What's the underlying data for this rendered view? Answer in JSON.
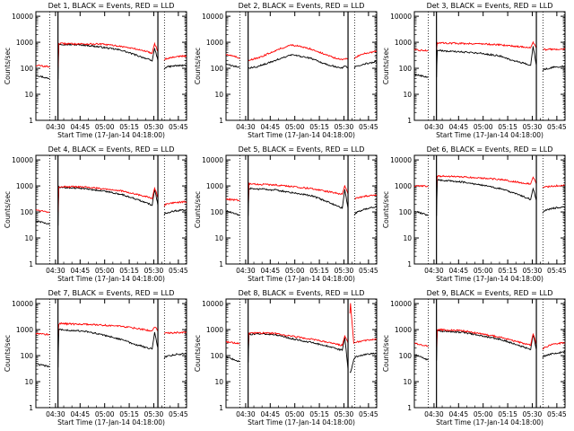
{
  "figure": {
    "start_time": "Start Time (17-Jan-14 04:18:00)",
    "ylabel": "Counts/sec",
    "colors": {
      "events": "#000000",
      "lld": "#ff0000",
      "axis": "#000000"
    }
  },
  "chart_data": [
    {
      "type": "line",
      "title": "Det 1, BLACK = Events, RED = LLD",
      "xlabel": "Start Time (17-Jan-14 04:18:00)",
      "ylabel": "Counts/sec",
      "xticks": [
        "04:30",
        "04:45",
        "05:00",
        "05:15",
        "05:30",
        "05:45"
      ],
      "yticks": [
        "1",
        "10",
        "100",
        "1000",
        "10000"
      ],
      "ylim": [
        1,
        15000
      ],
      "yscale": "log",
      "x_minutes": [
        0,
        8,
        8.5,
        13.5,
        14,
        20,
        30,
        40,
        52,
        60,
        68,
        71,
        72.5,
        74.5,
        76,
        78,
        79,
        85,
        92
      ],
      "series": [
        {
          "name": "Events",
          "values": [
            55,
            40,
            38,
            37,
            850,
            820,
            780,
            650,
            500,
            340,
            230,
            190,
            600,
            200,
            80,
            80,
            110,
            125,
            130
          ]
        },
        {
          "name": "LLD",
          "values": [
            130,
            115,
            112,
            110,
            900,
            880,
            860,
            850,
            700,
            570,
            440,
            380,
            900,
            440,
            180,
            180,
            230,
            280,
            300
          ]
        }
      ],
      "gaps": [
        [
          8.7,
          13.3
        ],
        [
          74.6,
          78.3
        ]
      ]
    },
    {
      "type": "line",
      "title": "Det 2, BLACK = Events, RED = LLD",
      "xlabel": "Start Time (17-Jan-14 04:18:00)",
      "ylabel": "Counts/sec",
      "xticks": [
        "04:30",
        "04:45",
        "05:00",
        "05:15",
        "05:30",
        "05:45"
      ],
      "yticks": [
        "1",
        "10",
        "100",
        "1000",
        "10000"
      ],
      "ylim": [
        1,
        15000
      ],
      "yscale": "log",
      "x_minutes": [
        0,
        8,
        8.5,
        13.5,
        14,
        20,
        30,
        40,
        52,
        60,
        68,
        71,
        72.5,
        74.5,
        76,
        78,
        79,
        85,
        92
      ],
      "series": [
        {
          "name": "Events",
          "values": [
            140,
            110,
            105,
            100,
            100,
            120,
            200,
            330,
            240,
            150,
            110,
            100,
            130,
            100,
            90,
            90,
            120,
            150,
            180
          ]
        },
        {
          "name": "LLD",
          "values": [
            350,
            250,
            230,
            200,
            210,
            250,
            480,
            800,
            550,
            350,
            230,
            210,
            240,
            220,
            200,
            200,
            270,
            380,
            450
          ]
        }
      ],
      "gaps": [
        [
          8.7,
          13.3
        ],
        [
          74.6,
          78.3
        ]
      ]
    },
    {
      "type": "line",
      "title": "Det 3, BLACK = Events, RED = LLD",
      "xlabel": "Start Time (17-Jan-14 04:18:00)",
      "ylabel": "Counts/sec",
      "xticks": [
        "04:30",
        "04:45",
        "05:00",
        "05:15",
        "05:30",
        "05:45"
      ],
      "yticks": [
        "1",
        "10",
        "100",
        "1000",
        "10000"
      ],
      "ylim": [
        1,
        15000
      ],
      "yscale": "log",
      "x_minutes": [
        0,
        8,
        8.5,
        13.5,
        14,
        20,
        30,
        40,
        52,
        60,
        68,
        71,
        72.5,
        74.5,
        76,
        78,
        79,
        85,
        92
      ],
      "series": [
        {
          "name": "Events",
          "values": [
            60,
            45,
            45,
            45,
            500,
            450,
            420,
            380,
            300,
            200,
            150,
            130,
            700,
            130,
            70,
            70,
            90,
            110,
            120
          ]
        },
        {
          "name": "LLD",
          "values": [
            500,
            480,
            480,
            480,
            950,
            930,
            900,
            880,
            800,
            720,
            650,
            620,
            1000,
            600,
            500,
            500,
            520,
            540,
            550
          ]
        }
      ],
      "gaps": [
        [
          8.7,
          13.3
        ],
        [
          74.6,
          78.3
        ]
      ]
    },
    {
      "type": "line",
      "title": "Det 4, BLACK = Events, RED = LLD",
      "xlabel": "Start Time (17-Jan-14 04:18:00)",
      "ylabel": "Counts/sec",
      "xticks": [
        "04:30",
        "04:45",
        "05:00",
        "05:15",
        "05:30",
        "05:45"
      ],
      "yticks": [
        "1",
        "10",
        "100",
        "1000",
        "10000"
      ],
      "ylim": [
        1,
        15000
      ],
      "yscale": "log",
      "x_minutes": [
        0,
        8,
        8.5,
        13.5,
        14,
        20,
        30,
        40,
        52,
        60,
        68,
        71,
        72.5,
        74.5,
        76,
        78,
        79,
        85,
        92
      ],
      "series": [
        {
          "name": "Events",
          "values": [
            45,
            35,
            32,
            30,
            900,
            850,
            780,
            650,
            480,
            330,
            220,
            180,
            750,
            180,
            70,
            70,
            90,
            110,
            120
          ]
        },
        {
          "name": "LLD",
          "values": [
            120,
            100,
            100,
            100,
            950,
            930,
            900,
            800,
            650,
            500,
            380,
            320,
            850,
            350,
            150,
            150,
            190,
            230,
            250
          ]
        }
      ],
      "gaps": [
        [
          8.7,
          13.3
        ],
        [
          74.6,
          78.3
        ]
      ]
    },
    {
      "type": "line",
      "title": "Det 5, BLACK = Events, RED = LLD",
      "xlabel": "Start Time (17-Jan-14 04:18:00)",
      "ylabel": "Counts/sec",
      "xticks": [
        "04:30",
        "04:45",
        "05:00",
        "05:15",
        "05:30",
        "05:45"
      ],
      "yticks": [
        "1",
        "10",
        "100",
        "1000",
        "10000"
      ],
      "ylim": [
        1,
        15000
      ],
      "yscale": "log",
      "x_minutes": [
        0,
        8,
        8.5,
        13.5,
        14,
        20,
        30,
        40,
        52,
        60,
        68,
        71,
        72.5,
        74.5,
        76,
        78,
        79,
        85,
        92
      ],
      "series": [
        {
          "name": "Events",
          "values": [
            110,
            75,
            72,
            70,
            800,
            760,
            700,
            560,
            420,
            280,
            170,
            140,
            700,
            140,
            70,
            70,
            90,
            130,
            160
          ]
        },
        {
          "name": "LLD",
          "values": [
            310,
            280,
            275,
            270,
            1200,
            1150,
            1100,
            950,
            800,
            650,
            520,
            480,
            1000,
            480,
            300,
            300,
            330,
            400,
            450
          ]
        }
      ],
      "gaps": [
        [
          8.7,
          13.3
        ],
        [
          74.6,
          78.3
        ]
      ]
    },
    {
      "type": "line",
      "title": "Det 6, BLACK = Events, RED = LLD",
      "xlabel": "Start Time (17-Jan-14 04:18:00)",
      "ylabel": "Counts/sec",
      "xticks": [
        "04:30",
        "04:45",
        "05:00",
        "05:15",
        "05:30",
        "05:45"
      ],
      "yticks": [
        "1",
        "10",
        "100",
        "1000",
        "10000"
      ],
      "ylim": [
        1,
        15000
      ],
      "yscale": "log",
      "x_minutes": [
        0,
        8,
        8.5,
        13.5,
        14,
        20,
        30,
        40,
        52,
        60,
        68,
        71,
        72.5,
        74.5,
        76,
        78,
        79,
        85,
        92
      ],
      "series": [
        {
          "name": "Events",
          "values": [
            110,
            75,
            72,
            70,
            1700,
            1600,
            1400,
            1100,
            800,
            550,
            360,
            300,
            800,
            280,
            80,
            80,
            110,
            140,
            160
          ]
        },
        {
          "name": "LLD",
          "values": [
            1000,
            980,
            980,
            980,
            2400,
            2350,
            2200,
            2000,
            1800,
            1500,
            1250,
            1200,
            2200,
            1200,
            850,
            850,
            900,
            1000,
            1050
          ]
        }
      ],
      "gaps": [
        [
          8.7,
          13.3
        ],
        [
          74.6,
          78.3
        ]
      ]
    },
    {
      "type": "line",
      "title": "Det 7, BLACK = Events, RED = LLD",
      "xlabel": "Start Time (17-Jan-14 04:18:00)",
      "ylabel": "Counts/sec",
      "xticks": [
        "04:30",
        "04:45",
        "05:00",
        "05:15",
        "05:30",
        "05:45"
      ],
      "yticks": [
        "1",
        "10",
        "100",
        "1000",
        "10000"
      ],
      "ylim": [
        1,
        15000
      ],
      "yscale": "log",
      "x_minutes": [
        0,
        8,
        8.5,
        13.5,
        14,
        20,
        30,
        40,
        52,
        60,
        68,
        71,
        72.5,
        74.5,
        76,
        78,
        79,
        85,
        92
      ],
      "series": [
        {
          "name": "Events",
          "values": [
            48,
            38,
            36,
            35,
            1000,
            950,
            850,
            650,
            420,
            280,
            200,
            180,
            750,
            200,
            70,
            70,
            90,
            110,
            120
          ]
        },
        {
          "name": "LLD",
          "values": [
            720,
            650,
            630,
            620,
            1700,
            1650,
            1600,
            1500,
            1350,
            1150,
            950,
            900,
            1300,
            900,
            700,
            700,
            730,
            760,
            800
          ]
        }
      ],
      "gaps": [
        [
          8.7,
          13.3
        ],
        [
          74.6,
          78.3
        ]
      ]
    },
    {
      "type": "line",
      "title": "Det 8, BLACK = Events, RED = LLD",
      "xlabel": "Start Time (17-Jan-14 04:18:00)",
      "ylabel": "Counts/sec",
      "xticks": [
        "04:30",
        "04:45",
        "05:00",
        "05:15",
        "05:30",
        "05:45"
      ],
      "yticks": [
        "1",
        "10",
        "100",
        "1000",
        "10000"
      ],
      "ylim": [
        1,
        15000
      ],
      "yscale": "log",
      "x_minutes": [
        0,
        8,
        8.5,
        13.5,
        14,
        20,
        30,
        40,
        52,
        60,
        68,
        71,
        72.5,
        74.5,
        76,
        78,
        79,
        85,
        92
      ],
      "series": [
        {
          "name": "Events",
          "values": [
            90,
            60,
            58,
            55,
            650,
            700,
            650,
            450,
            320,
            250,
            180,
            160,
            500,
            30,
            22,
            70,
            90,
            110,
            120
          ]
        },
        {
          "name": "LLD",
          "values": [
            340,
            290,
            285,
            280,
            720,
            750,
            720,
            560,
            430,
            340,
            270,
            250,
            560,
            300,
            10000,
            300,
            330,
            380,
            420
          ]
        }
      ],
      "gaps": [
        [
          8.7,
          13.3
        ],
        [
          74.6,
          75.4
        ]
      ]
    },
    {
      "type": "line",
      "title": "Det 9, BLACK = Events, RED = LLD",
      "xlabel": "Start Time (17-Jan-14 04:18:00)",
      "ylabel": "Counts/sec",
      "xticks": [
        "04:30",
        "04:45",
        "05:00",
        "05:15",
        "05:30",
        "05:45"
      ],
      "yticks": [
        "1",
        "10",
        "100",
        "1000",
        "10000"
      ],
      "ylim": [
        1,
        15000
      ],
      "yscale": "log",
      "x_minutes": [
        0,
        8,
        8.5,
        13.5,
        14,
        20,
        30,
        40,
        52,
        60,
        68,
        71,
        72.5,
        74.5,
        76,
        78,
        79,
        85,
        92
      ],
      "series": [
        {
          "name": "Events",
          "values": [
            110,
            70,
            68,
            65,
            900,
            850,
            780,
            600,
            430,
            300,
            200,
            170,
            650,
            170,
            75,
            75,
            95,
            120,
            140
          ]
        },
        {
          "name": "LLD",
          "values": [
            300,
            230,
            225,
            220,
            1000,
            960,
            900,
            700,
            520,
            380,
            280,
            250,
            700,
            260,
            160,
            160,
            200,
            280,
            320
          ]
        }
      ],
      "gaps": [
        [
          8.7,
          13.3
        ],
        [
          74.6,
          78.3
        ]
      ]
    }
  ]
}
